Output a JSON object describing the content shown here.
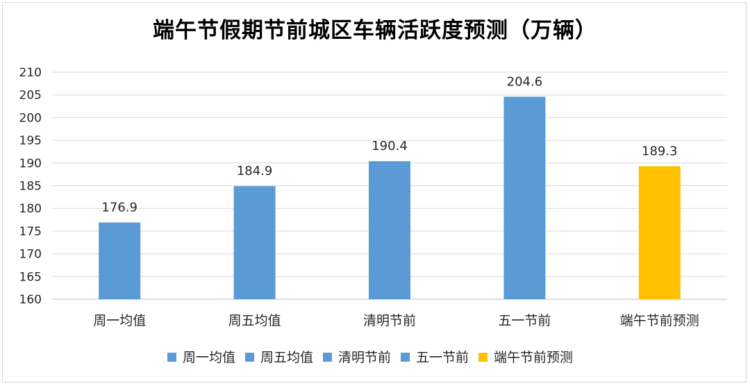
{
  "chart_data": {
    "type": "bar",
    "title": "端午节假期节前城区车辆活跃度预测（万辆）",
    "categories": [
      "周一均值",
      "周五均值",
      "清明节前",
      "五一节前",
      "端午节前预测"
    ],
    "values": [
      176.9,
      184.9,
      190.4,
      204.6,
      189.3
    ],
    "colors": [
      "#5b9bd5",
      "#5b9bd5",
      "#5b9bd5",
      "#5b9bd5",
      "#ffc000"
    ],
    "xlabel": "",
    "ylabel": "",
    "ylim": [
      160,
      210
    ],
    "yticks": [
      160,
      165,
      170,
      175,
      180,
      185,
      190,
      195,
      200,
      205,
      210
    ],
    "grid": true,
    "legend": {
      "position": "bottom",
      "entries": [
        "周一均值",
        "周五均值",
        "清明节前",
        "五一节前",
        "端午节前预测"
      ]
    }
  }
}
